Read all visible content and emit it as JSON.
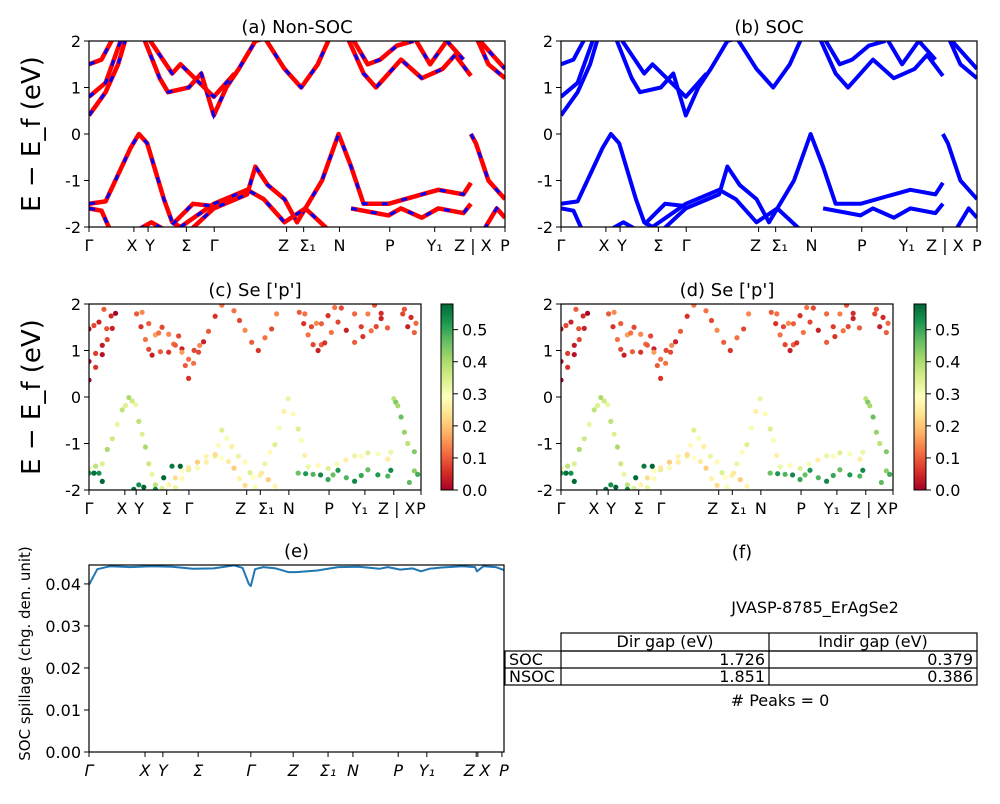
{
  "chart_data": [
    {
      "id": "a",
      "type": "line",
      "title": "(a) Non-SOC",
      "ylabel": "E − E_f (eV)",
      "ylim": [
        -2,
        2
      ],
      "yticks": [
        -2,
        -1,
        0,
        1,
        2
      ],
      "style": "red-line-blue-dash",
      "colors": {
        "line": "#ff0000",
        "dash": "#0000ff"
      }
    },
    {
      "id": "b",
      "type": "line",
      "title": "(b) SOC",
      "ylim": [
        -2,
        2
      ],
      "yticks": [
        -2,
        -1,
        0,
        1,
        2
      ],
      "style": "blue-line",
      "colors": {
        "line": "#0000ff"
      }
    },
    {
      "id": "c",
      "type": "scatter",
      "title": "(c)  Se ['p']",
      "ylabel": "E − E_f (eV)",
      "ylim": [
        -2,
        2
      ],
      "yticks": [
        -2,
        -1,
        0,
        1,
        2
      ],
      "colormap": "RdYlGn",
      "colorbar_ticks": [
        "0.0",
        "0.1",
        "0.2",
        "0.3",
        "0.4",
        "0.5"
      ],
      "colorbar_range": [
        0,
        0.58
      ]
    },
    {
      "id": "d",
      "type": "scatter",
      "title": "(d) Se ['p']",
      "ylim": [
        -2,
        2
      ],
      "yticks": [
        -2,
        -1,
        0,
        1,
        2
      ],
      "colormap": "RdYlGn",
      "colorbar_ticks": [
        "0.0",
        "0.1",
        "0.2",
        "0.3",
        "0.4",
        "0.5"
      ],
      "colorbar_range": [
        0,
        0.58
      ]
    },
    {
      "id": "e",
      "type": "line",
      "title": "(e)",
      "ylabel": "SOC spillage (chg. den. unit)",
      "ylim": [
        0,
        0.0445
      ],
      "yticks": [
        "0.00",
        "0.01",
        "0.02",
        "0.03",
        "0.04"
      ],
      "color": "#1f77b4",
      "kpath_labels": [
        "Γ",
        "X",
        "Y",
        "Σ",
        "Γ",
        "Z",
        "Σ₁",
        "N",
        "P",
        "Y₁",
        "Z",
        "X",
        "P"
      ],
      "x": [
        0,
        0.02,
        0.05,
        0.1,
        0.15,
        0.2,
        0.25,
        0.3,
        0.35,
        0.37,
        0.385,
        0.39,
        0.4,
        0.42,
        0.45,
        0.48,
        0.5,
        0.55,
        0.6,
        0.65,
        0.7,
        0.72,
        0.75,
        0.78,
        0.8,
        0.82,
        0.85,
        0.88,
        0.9,
        0.93,
        0.935,
        0.95,
        0.98,
        1.0
      ],
      "y": [
        0.0398,
        0.0435,
        0.0442,
        0.044,
        0.0442,
        0.0441,
        0.0436,
        0.0437,
        0.0444,
        0.0438,
        0.04,
        0.0395,
        0.0435,
        0.044,
        0.0437,
        0.0428,
        0.0428,
        0.0432,
        0.044,
        0.0441,
        0.0436,
        0.044,
        0.0434,
        0.0437,
        0.043,
        0.0436,
        0.0439,
        0.0441,
        0.0442,
        0.044,
        0.043,
        0.0442,
        0.044,
        0.0433
      ]
    }
  ],
  "kpath_labels": [
    "Γ",
    "X",
    "Y",
    "Σ",
    "Γ",
    "Z",
    "Σ₁",
    "N",
    "P",
    "Y₁",
    "Z | X",
    "P"
  ],
  "bands": [
    {
      "w": 0.36,
      "pts": [
        [
          0,
          -1.5
        ],
        [
          0.04,
          -1.45
        ],
        [
          0.1,
          -0.3
        ],
        [
          0.12,
          0
        ],
        [
          0.14,
          -0.2
        ],
        [
          0.18,
          -1.4
        ],
        [
          0.2,
          -1.9
        ],
        [
          0.24,
          -2.1
        ]
      ]
    },
    {
      "w": 0.3,
      "pts": [
        [
          0.24,
          -2.1
        ],
        [
          0.3,
          -1.6
        ],
        [
          0.38,
          -1.3
        ],
        [
          0.4,
          -0.7
        ],
        [
          0.43,
          -1.1
        ],
        [
          0.47,
          -1.4
        ],
        [
          0.5,
          -1.9
        ],
        [
          0.56,
          -1.0
        ],
        [
          0.6,
          0
        ],
        [
          0.63,
          -0.7
        ],
        [
          0.66,
          -1.5
        ],
        [
          0.72,
          -1.5
        ],
        [
          0.8,
          -1.3
        ],
        [
          0.84,
          -1.2
        ],
        [
          0.9,
          -1.3
        ],
        [
          0.918,
          -1.05
        ]
      ]
    },
    {
      "w": 0.55,
      "pts": [
        [
          0,
          -1.6
        ],
        [
          0.03,
          -1.65
        ],
        [
          0.05,
          -2.05
        ]
      ]
    },
    {
      "w": 0.25,
      "pts": [
        [
          0.22,
          -2.0
        ],
        [
          0.3,
          -1.5
        ],
        [
          0.38,
          -1.2
        ],
        [
          0.42,
          -1.4
        ],
        [
          0.47,
          -1.9
        ],
        [
          0.52,
          -1.6
        ],
        [
          0.58,
          -2.1
        ]
      ]
    },
    {
      "w": 0.5,
      "pts": [
        [
          0.63,
          -1.6
        ],
        [
          0.72,
          -1.75
        ],
        [
          0.75,
          -1.6
        ],
        [
          0.8,
          -1.8
        ],
        [
          0.84,
          -1.6
        ],
        [
          0.9,
          -1.7
        ],
        [
          0.918,
          -1.5
        ]
      ]
    },
    {
      "w": 0.42,
      "pts": [
        [
          0.918,
          0
        ],
        [
          0.93,
          -0.2
        ],
        [
          0.96,
          -1.0
        ],
        [
          1.0,
          -1.4
        ]
      ]
    },
    {
      "w": 0.45,
      "pts": [
        [
          0.95,
          -2.05
        ],
        [
          0.98,
          -1.6
        ],
        [
          1.0,
          -1.8
        ]
      ]
    },
    {
      "w": 0.55,
      "pts": [
        [
          0.12,
          -2.05
        ],
        [
          0.15,
          -1.9
        ],
        [
          0.18,
          -2.05
        ]
      ]
    },
    {
      "w": 0.58,
      "pts": [
        [
          0.2,
          -1.95
        ],
        [
          0.25,
          -1.5
        ],
        [
          0.3,
          -1.55
        ]
      ]
    },
    {
      "w": 0.04,
      "pts": [
        [
          0,
          0.4
        ],
        [
          0.04,
          0.9
        ],
        [
          0.07,
          1.5
        ],
        [
          0.09,
          2.1
        ]
      ]
    },
    {
      "w": 0.05,
      "pts": [
        [
          0,
          0.8
        ],
        [
          0.04,
          1.1
        ],
        [
          0.08,
          2.1
        ]
      ]
    },
    {
      "w": 0.08,
      "pts": [
        [
          0.13,
          2.1
        ],
        [
          0.17,
          1.2
        ],
        [
          0.19,
          0.9
        ],
        [
          0.24,
          1.0
        ],
        [
          0.27,
          1.3
        ],
        [
          0.3,
          0.4
        ],
        [
          0.33,
          1.0
        ],
        [
          0.36,
          1.4
        ],
        [
          0.4,
          2.0
        ],
        [
          0.44,
          2.1
        ]
      ]
    },
    {
      "w": 0.12,
      "pts": [
        [
          0.14,
          2.1
        ],
        [
          0.2,
          1.3
        ],
        [
          0.22,
          1.5
        ],
        [
          0.3,
          0.8
        ],
        [
          0.35,
          1.3
        ]
      ]
    },
    {
      "w": 0.1,
      "pts": [
        [
          0.42,
          2.1
        ],
        [
          0.47,
          1.4
        ],
        [
          0.51,
          1.0
        ],
        [
          0.55,
          1.5
        ],
        [
          0.58,
          2.1
        ]
      ]
    },
    {
      "w": 0.08,
      "pts": [
        [
          0.62,
          2.1
        ],
        [
          0.66,
          1.3
        ],
        [
          0.69,
          1.0
        ],
        [
          0.71,
          1.2
        ],
        [
          0.75,
          1.6
        ],
        [
          0.8,
          1.2
        ],
        [
          0.85,
          1.4
        ],
        [
          0.88,
          1.7
        ],
        [
          0.918,
          1.25
        ]
      ]
    },
    {
      "w": 0.1,
      "pts": [
        [
          0.63,
          2.1
        ],
        [
          0.67,
          1.5
        ],
        [
          0.7,
          1.6
        ],
        [
          0.74,
          1.9
        ],
        [
          0.78,
          2.0
        ]
      ]
    },
    {
      "w": 0.09,
      "pts": [
        [
          0.78,
          2.1
        ],
        [
          0.82,
          1.5
        ],
        [
          0.86,
          2.0
        ],
        [
          0.9,
          1.6
        ]
      ]
    },
    {
      "w": 0.06,
      "pts": [
        [
          0.93,
          2.1
        ],
        [
          0.96,
          1.5
        ],
        [
          1.0,
          1.2
        ]
      ]
    },
    {
      "w": 0.07,
      "pts": [
        [
          0.93,
          2.1
        ],
        [
          0.97,
          1.7
        ],
        [
          1.0,
          1.4
        ]
      ]
    },
    {
      "w": 0.06,
      "pts": [
        [
          0,
          1.5
        ],
        [
          0.03,
          1.6
        ],
        [
          0.06,
          2.1
        ]
      ]
    }
  ],
  "table": {
    "title": "JVASP-8785_ErAgSe2",
    "title_panel": "(f)",
    "columns": [
      "Dir gap (eV)",
      "Indir gap (eV)"
    ],
    "rows": [
      {
        "label": "SOC",
        "values": [
          "1.726",
          "0.379"
        ]
      },
      {
        "label": "NSOC",
        "values": [
          "1.851",
          "0.386"
        ]
      }
    ],
    "footer": "# Peaks = 0"
  }
}
